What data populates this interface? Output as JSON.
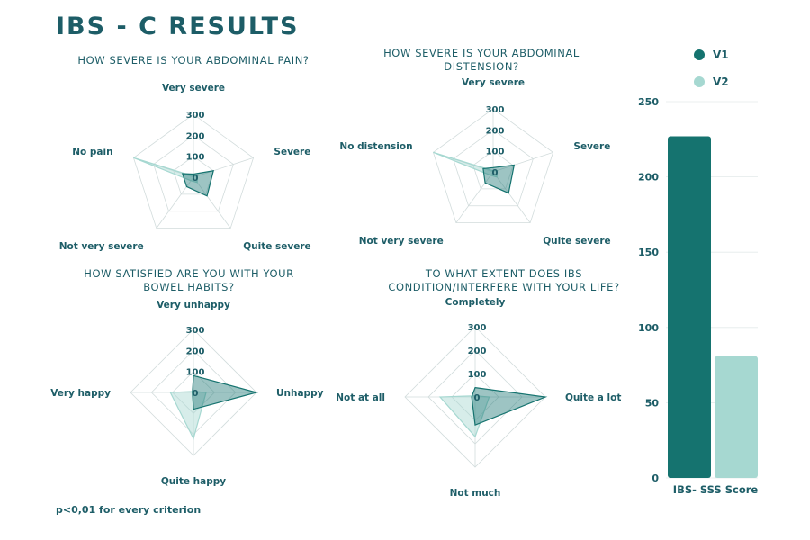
{
  "title": "IBS - C RESULTS",
  "footnote": "p<0,01 for every criterion",
  "colors": {
    "v1": "#15736f",
    "v2": "#a6d8d1",
    "text": "#1d5d67",
    "grid": "#d2dcdc"
  },
  "chart_data": [
    {
      "type": "radar",
      "title": "HOW SEVERE IS YOUR ABDOMINAL PAIN?",
      "axes": [
        "Very severe",
        "Severe",
        "Quite severe",
        "Not very severe",
        "No pain"
      ],
      "ticks": [
        "0",
        "100",
        "200",
        "300"
      ],
      "rmax": 300,
      "series": [
        {
          "name": "V1",
          "values": [
            15,
            100,
            110,
            55,
            55
          ]
        },
        {
          "name": "V2",
          "values": [
            5,
            20,
            30,
            20,
            300
          ]
        }
      ]
    },
    {
      "type": "radar",
      "title": "HOW SEVERE IS YOUR ABDOMINAL DISTENSION?",
      "axes": [
        "Very severe",
        "Severe",
        "Quite severe",
        "Not very severe",
        "No distension"
      ],
      "ticks": [
        "0",
        "100",
        "200",
        "300"
      ],
      "rmax": 300,
      "series": [
        {
          "name": "V1",
          "values": [
            20,
            105,
            125,
            65,
            50
          ]
        },
        {
          "name": "V2",
          "values": [
            5,
            20,
            30,
            20,
            300
          ]
        }
      ]
    },
    {
      "type": "radar",
      "title": "HOW SATISFIED ARE YOU WITH YOUR BOWEL HABITS?",
      "axes": [
        "Very unhappy",
        "Unhappy",
        "Quite happy",
        "Very happy"
      ],
      "ticks": [
        "0",
        "100",
        "200",
        "300"
      ],
      "rmax": 300,
      "series": [
        {
          "name": "V1",
          "values": [
            80,
            300,
            80,
            5
          ]
        },
        {
          "name": "V2",
          "values": [
            5,
            60,
            220,
            110
          ]
        }
      ]
    },
    {
      "type": "radar",
      "title": "TO WHAT EXTENT DOES IBS CONDITION/INTERFERE WITH YOUR LIFE?",
      "axes": [
        "Completely",
        "Quite a lot",
        "Not much",
        "Not at all"
      ],
      "ticks": [
        "0",
        "100",
        "200",
        "300"
      ],
      "rmax": 300,
      "series": [
        {
          "name": "V1",
          "values": [
            40,
            300,
            120,
            15
          ]
        },
        {
          "name": "V2",
          "values": [
            5,
            60,
            170,
            150
          ]
        }
      ]
    },
    {
      "type": "bar",
      "categories": [
        "IBS- SSS Score"
      ],
      "series": [
        {
          "name": "V1",
          "values": [
            227
          ]
        },
        {
          "name": "V2",
          "values": [
            81
          ]
        }
      ],
      "ylim": [
        0,
        250
      ],
      "yticks": [
        0,
        50,
        100,
        150,
        200,
        250
      ],
      "legend": "top",
      "grid": true
    }
  ]
}
